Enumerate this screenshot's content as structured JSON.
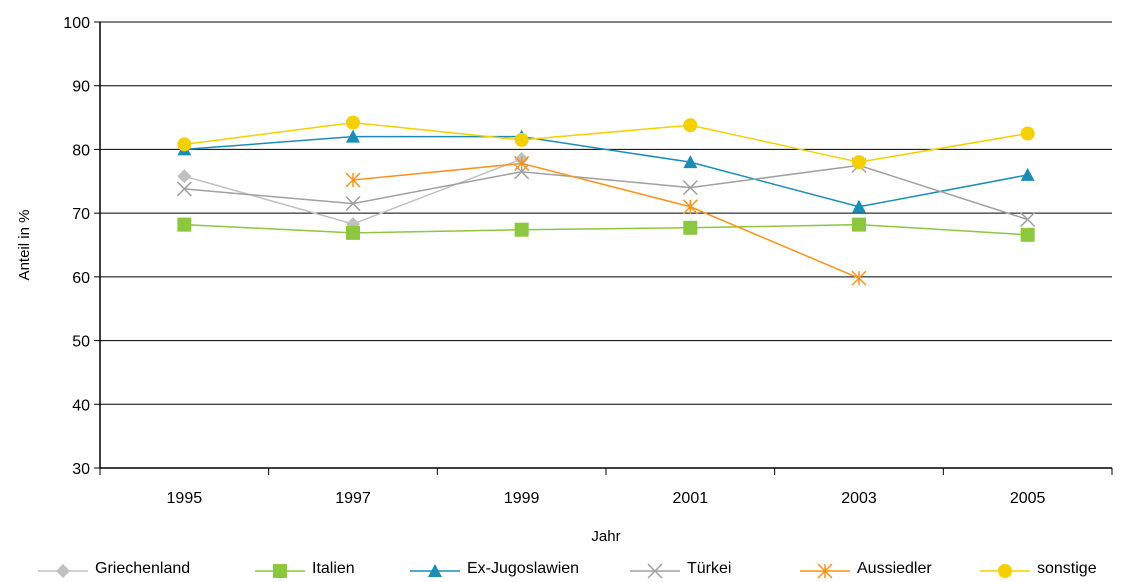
{
  "chart_data": {
    "type": "line",
    "title": "",
    "xlabel": "Jahr",
    "ylabel": "Anteil in %",
    "categories": [
      "1995",
      "1997",
      "1999",
      "2001",
      "2003",
      "2005"
    ],
    "ylim": [
      30,
      100
    ],
    "yticks": [
      30,
      40,
      50,
      60,
      70,
      80,
      90,
      100
    ],
    "grid": true,
    "legend_position": "bottom",
    "series": [
      {
        "name": "Griechenland",
        "color": "#C0C0C0",
        "marker": "diamond",
        "values": [
          75.8,
          68.3,
          78.5,
          null,
          null,
          null
        ]
      },
      {
        "name": "Italien",
        "color": "#8DC63F",
        "marker": "square",
        "values": [
          68.2,
          66.9,
          67.4,
          67.7,
          68.2,
          66.6
        ]
      },
      {
        "name": "Ex-Jugoslawien",
        "color": "#1B8DB5",
        "marker": "triangle",
        "values": [
          80.0,
          82.0,
          82.0,
          78.0,
          71.0,
          76.0
        ]
      },
      {
        "name": "Türkei",
        "color": "#A0A0A0",
        "marker": "x",
        "values": [
          73.8,
          71.5,
          76.5,
          74.0,
          77.5,
          69.0
        ]
      },
      {
        "name": "Aussiedler",
        "color": "#F7941D",
        "marker": "star",
        "values": [
          null,
          75.2,
          77.8,
          71.0,
          59.8,
          null
        ]
      },
      {
        "name": "sonstige",
        "color": "#F5D000",
        "marker": "circle",
        "values": [
          80.8,
          84.2,
          81.5,
          83.8,
          78.0,
          82.5
        ]
      }
    ]
  }
}
